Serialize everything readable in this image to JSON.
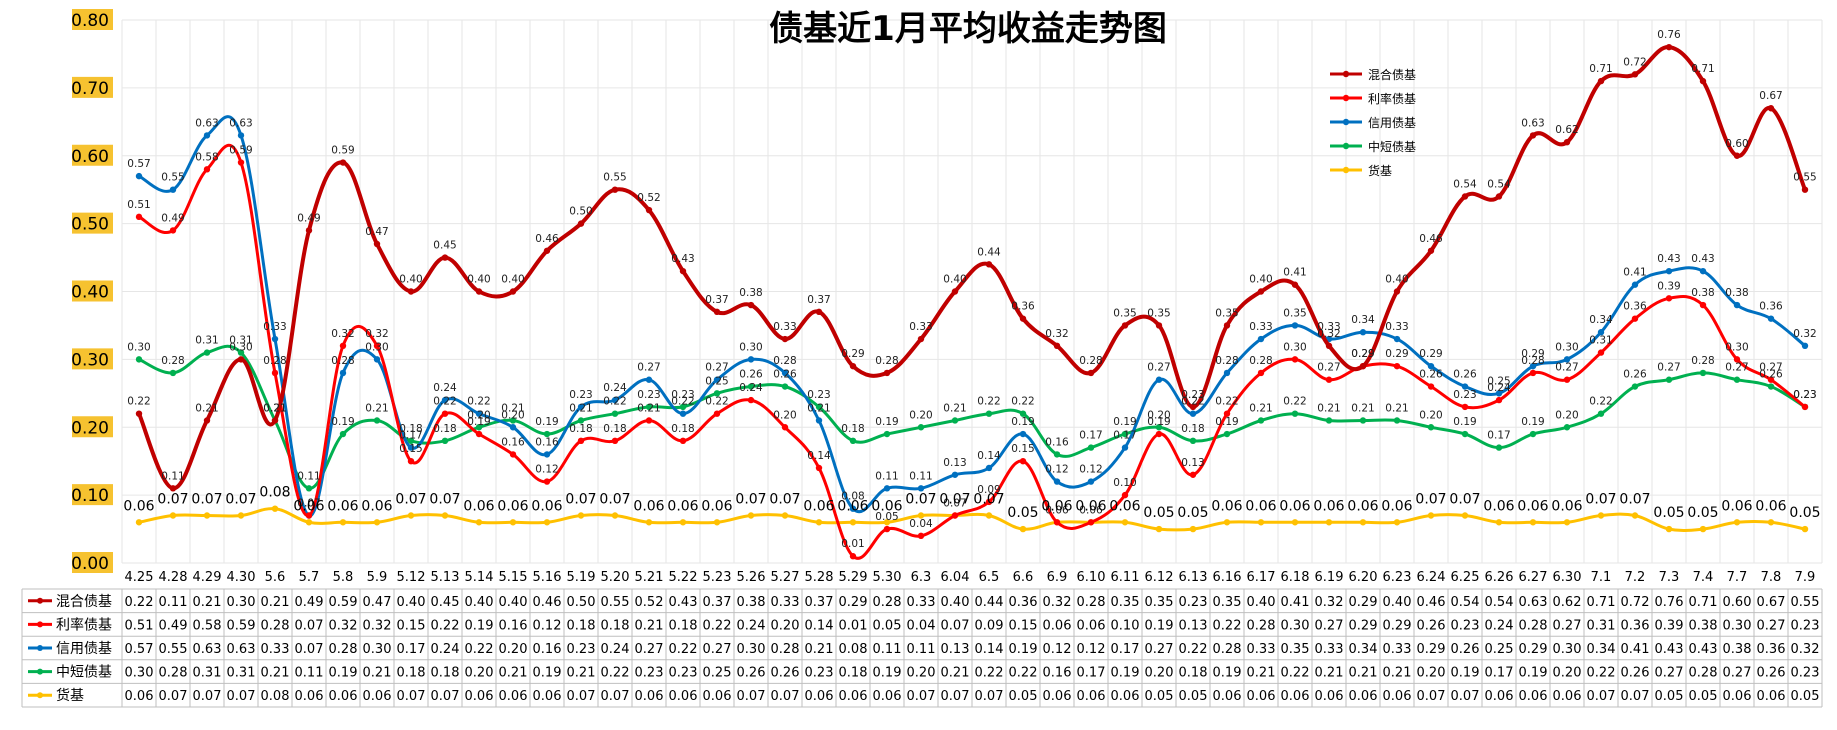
{
  "chart_data": {
    "type": "line",
    "title": "债基近1月平均收益走势图",
    "categories": [
      "4.25",
      "4.28",
      "4.29",
      "4.30",
      "5.6",
      "5.7",
      "5.8",
      "5.9",
      "5.12",
      "5.13",
      "5.14",
      "5.15",
      "5.16",
      "5.19",
      "5.20",
      "5.21",
      "5.22",
      "5.23",
      "5.26",
      "5.27",
      "5.28",
      "5.29",
      "5.30",
      "6.3",
      "6.04",
      "6.5",
      "6.6",
      "6.9",
      "6.10",
      "6.11",
      "6.12",
      "6.13",
      "6.16",
      "6.17",
      "6.18",
      "6.19",
      "6.20",
      "6.23",
      "6.24",
      "6.25",
      "6.26",
      "6.27",
      "6.30",
      "7.1",
      "7.2",
      "7.3",
      "7.4",
      "7.7",
      "7.8",
      "7.9"
    ],
    "y_ticks": [
      "0.00",
      "0.10",
      "0.20",
      "0.30",
      "0.40",
      "0.50",
      "0.60",
      "0.70",
      "0.80"
    ],
    "ylim": [
      0,
      0.8
    ],
    "legend_position": "top-right",
    "series": [
      {
        "name": "混合债基",
        "color": "#c00000",
        "values": [
          0.22,
          0.11,
          0.21,
          0.3,
          0.21,
          0.49,
          0.59,
          0.47,
          0.4,
          0.45,
          0.4,
          0.4,
          0.46,
          0.5,
          0.55,
          0.52,
          0.43,
          0.37,
          0.38,
          0.33,
          0.37,
          0.29,
          0.28,
          0.33,
          0.4,
          0.44,
          0.36,
          0.32,
          0.28,
          0.35,
          0.35,
          0.23,
          0.35,
          0.4,
          0.41,
          0.32,
          0.29,
          0.4,
          0.46,
          0.54,
          0.54,
          0.63,
          0.62,
          0.71,
          0.72,
          0.76,
          0.71,
          0.6,
          0.67,
          0.55
        ]
      },
      {
        "name": "利率债基",
        "color": "#ff0000",
        "values": [
          0.51,
          0.49,
          0.58,
          0.59,
          0.28,
          0.07,
          0.32,
          0.32,
          0.15,
          0.22,
          0.19,
          0.16,
          0.12,
          0.18,
          0.18,
          0.21,
          0.18,
          0.22,
          0.24,
          0.2,
          0.14,
          0.01,
          0.05,
          0.04,
          0.07,
          0.09,
          0.15,
          0.06,
          0.06,
          0.1,
          0.19,
          0.13,
          0.22,
          0.28,
          0.3,
          0.27,
          0.29,
          0.29,
          0.26,
          0.23,
          0.24,
          0.28,
          0.27,
          0.31,
          0.36,
          0.39,
          0.38,
          0.3,
          0.27,
          0.23
        ]
      },
      {
        "name": "信用债基",
        "color": "#0070c0",
        "values": [
          0.57,
          0.55,
          0.63,
          0.63,
          0.33,
          0.07,
          0.28,
          0.3,
          0.17,
          0.24,
          0.22,
          0.2,
          0.16,
          0.23,
          0.24,
          0.27,
          0.22,
          0.27,
          0.3,
          0.28,
          0.21,
          0.08,
          0.11,
          0.11,
          0.13,
          0.14,
          0.19,
          0.12,
          0.12,
          0.17,
          0.27,
          0.22,
          0.28,
          0.33,
          0.35,
          0.33,
          0.34,
          0.33,
          0.29,
          0.26,
          0.25,
          0.29,
          0.3,
          0.34,
          0.41,
          0.43,
          0.43,
          0.38,
          0.36,
          0.32
        ]
      },
      {
        "name": "中短债基",
        "color": "#00b050",
        "values": [
          0.3,
          0.28,
          0.31,
          0.31,
          0.21,
          0.11,
          0.19,
          0.21,
          0.18,
          0.18,
          0.2,
          0.21,
          0.19,
          0.21,
          0.22,
          0.23,
          0.23,
          0.25,
          0.26,
          0.26,
          0.23,
          0.18,
          0.19,
          0.2,
          0.21,
          0.22,
          0.22,
          0.16,
          0.17,
          0.19,
          0.2,
          0.18,
          0.19,
          0.21,
          0.22,
          0.21,
          0.21,
          0.21,
          0.2,
          0.19,
          0.17,
          0.19,
          0.2,
          0.22,
          0.26,
          0.27,
          0.28,
          0.27,
          0.26,
          0.23
        ]
      },
      {
        "name": "货基",
        "color": "#ffc000",
        "values": [
          0.06,
          0.07,
          0.07,
          0.07,
          0.08,
          0.06,
          0.06,
          0.06,
          0.07,
          0.07,
          0.06,
          0.06,
          0.06,
          0.07,
          0.07,
          0.06,
          0.06,
          0.06,
          0.07,
          0.07,
          0.06,
          0.06,
          0.06,
          0.07,
          0.07,
          0.07,
          0.05,
          0.06,
          0.06,
          0.06,
          0.05,
          0.05,
          0.06,
          0.06,
          0.06,
          0.06,
          0.06,
          0.06,
          0.07,
          0.07,
          0.06,
          0.06,
          0.06,
          0.07,
          0.07,
          0.05,
          0.05,
          0.06,
          0.06,
          0.05
        ]
      }
    ]
  }
}
